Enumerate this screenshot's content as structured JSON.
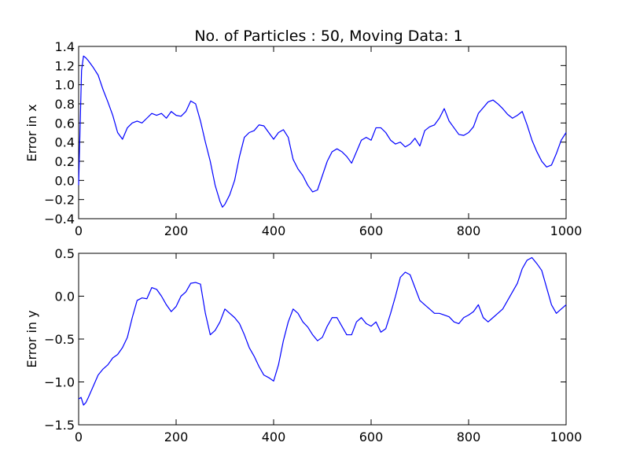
{
  "chart_data": [
    {
      "type": "line",
      "title": "No. of Particles : 50, Moving Data: 1",
      "xlabel": "",
      "ylabel": "Error in x",
      "xlim": [
        0,
        1000
      ],
      "ylim": [
        -0.4,
        1.4
      ],
      "xticks": [
        0,
        200,
        400,
        600,
        800,
        1000
      ],
      "xtick_labels": [
        "0",
        "200",
        "400",
        "600",
        "800",
        "1000"
      ],
      "yticks": [
        -0.4,
        -0.2,
        0.0,
        0.2,
        0.4,
        0.6,
        0.8,
        1.0,
        1.2,
        1.4
      ],
      "ytick_labels": [
        "−0.4",
        "−0.2",
        "0.0",
        "0.2",
        "0.4",
        "0.6",
        "0.8",
        "1.0",
        "1.2",
        "1.4"
      ],
      "grid": false,
      "series": [
        {
          "color": "#0000ff",
          "x": [
            0,
            3,
            6,
            10,
            15,
            20,
            30,
            40,
            50,
            60,
            70,
            80,
            90,
            100,
            110,
            120,
            130,
            140,
            150,
            160,
            170,
            180,
            190,
            200,
            210,
            220,
            230,
            240,
            250,
            260,
            270,
            280,
            290,
            295,
            300,
            310,
            320,
            330,
            340,
            350,
            360,
            370,
            380,
            390,
            400,
            410,
            420,
            430,
            440,
            450,
            460,
            470,
            480,
            490,
            500,
            510,
            520,
            530,
            540,
            550,
            560,
            570,
            580,
            590,
            600,
            610,
            620,
            630,
            640,
            650,
            660,
            670,
            680,
            690,
            700,
            710,
            720,
            730,
            740,
            750,
            760,
            770,
            780,
            790,
            800,
            810,
            820,
            830,
            840,
            850,
            860,
            870,
            880,
            890,
            900,
            910,
            920,
            930,
            940,
            950,
            960,
            970,
            980,
            990,
            1000
          ],
          "y": [
            -0.05,
            0.55,
            1.15,
            1.3,
            1.28,
            1.25,
            1.18,
            1.1,
            0.95,
            0.82,
            0.68,
            0.5,
            0.43,
            0.55,
            0.6,
            0.62,
            0.6,
            0.65,
            0.7,
            0.68,
            0.7,
            0.65,
            0.72,
            0.68,
            0.67,
            0.72,
            0.83,
            0.8,
            0.62,
            0.4,
            0.2,
            -0.05,
            -0.22,
            -0.28,
            -0.25,
            -0.15,
            0.0,
            0.25,
            0.45,
            0.5,
            0.52,
            0.58,
            0.57,
            0.5,
            0.43,
            0.5,
            0.53,
            0.45,
            0.22,
            0.12,
            0.05,
            -0.05,
            -0.12,
            -0.1,
            0.05,
            0.2,
            0.3,
            0.33,
            0.3,
            0.25,
            0.18,
            0.3,
            0.42,
            0.45,
            0.42,
            0.55,
            0.55,
            0.5,
            0.42,
            0.38,
            0.4,
            0.35,
            0.38,
            0.44,
            0.36,
            0.52,
            0.56,
            0.58,
            0.65,
            0.75,
            0.62,
            0.55,
            0.48,
            0.47,
            0.5,
            0.56,
            0.7,
            0.76,
            0.82,
            0.84,
            0.8,
            0.75,
            0.69,
            0.65,
            0.68,
            0.72,
            0.58,
            0.42,
            0.3,
            0.2,
            0.14,
            0.16,
            0.28,
            0.42,
            0.5
          ]
        }
      ]
    },
    {
      "type": "line",
      "title": "",
      "xlabel": "",
      "ylabel": "Error in y",
      "xlim": [
        0,
        1000
      ],
      "ylim": [
        -1.5,
        0.5
      ],
      "xticks": [
        0,
        200,
        400,
        600,
        800,
        1000
      ],
      "xtick_labels": [
        "0",
        "200",
        "400",
        "600",
        "800",
        "1000"
      ],
      "yticks": [
        -1.5,
        -1.0,
        -0.5,
        0.0,
        0.5
      ],
      "ytick_labels": [
        "−1.5",
        "−1.0",
        "−0.5",
        "0.0",
        "0.5"
      ],
      "grid": false,
      "series": [
        {
          "color": "#0000ff",
          "x": [
            0,
            5,
            10,
            15,
            20,
            30,
            40,
            50,
            60,
            70,
            80,
            90,
            100,
            110,
            120,
            130,
            140,
            150,
            160,
            170,
            180,
            190,
            200,
            210,
            220,
            230,
            240,
            250,
            260,
            270,
            280,
            290,
            300,
            310,
            320,
            330,
            340,
            350,
            360,
            370,
            380,
            390,
            400,
            410,
            420,
            430,
            440,
            450,
            460,
            470,
            480,
            490,
            500,
            510,
            520,
            530,
            540,
            550,
            560,
            570,
            580,
            590,
            600,
            610,
            620,
            630,
            640,
            650,
            660,
            670,
            680,
            690,
            700,
            710,
            720,
            730,
            740,
            750,
            760,
            770,
            780,
            790,
            800,
            810,
            820,
            830,
            840,
            850,
            860,
            870,
            880,
            890,
            900,
            910,
            920,
            930,
            940,
            950,
            960,
            970,
            980,
            990,
            1000
          ],
          "y": [
            -1.2,
            -1.18,
            -1.27,
            -1.24,
            -1.18,
            -1.05,
            -0.92,
            -0.85,
            -0.8,
            -0.72,
            -0.68,
            -0.6,
            -0.48,
            -0.25,
            -0.05,
            -0.02,
            -0.03,
            0.1,
            0.08,
            0.0,
            -0.1,
            -0.18,
            -0.12,
            0.0,
            0.05,
            0.15,
            0.16,
            0.14,
            -0.2,
            -0.45,
            -0.4,
            -0.3,
            -0.15,
            -0.2,
            -0.25,
            -0.32,
            -0.45,
            -0.6,
            -0.7,
            -0.82,
            -0.92,
            -0.95,
            -0.99,
            -0.8,
            -0.52,
            -0.3,
            -0.15,
            -0.2,
            -0.3,
            -0.36,
            -0.45,
            -0.52,
            -0.48,
            -0.35,
            -0.25,
            -0.25,
            -0.35,
            -0.45,
            -0.45,
            -0.3,
            -0.25,
            -0.32,
            -0.35,
            -0.3,
            -0.42,
            -0.38,
            -0.2,
            0.0,
            0.22,
            0.28,
            0.25,
            0.1,
            -0.05,
            -0.1,
            -0.15,
            -0.2,
            -0.2,
            -0.22,
            -0.24,
            -0.3,
            -0.32,
            -0.25,
            -0.22,
            -0.18,
            -0.1,
            -0.25,
            -0.3,
            -0.25,
            -0.2,
            -0.15,
            -0.05,
            0.05,
            0.15,
            0.32,
            0.42,
            0.45,
            0.38,
            0.3,
            0.1,
            -0.1,
            -0.2,
            -0.15,
            -0.1
          ]
        }
      ]
    }
  ]
}
